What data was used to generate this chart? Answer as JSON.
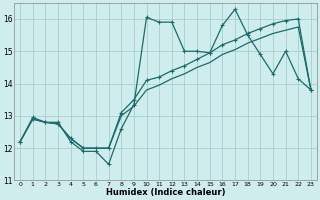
{
  "x": [
    0,
    1,
    2,
    3,
    4,
    5,
    6,
    7,
    8,
    9,
    10,
    11,
    12,
    13,
    14,
    15,
    16,
    17,
    18,
    19,
    20,
    21,
    22,
    23
  ],
  "line_jagged": [
    12.2,
    12.9,
    12.8,
    12.8,
    12.2,
    11.9,
    11.9,
    11.5,
    12.6,
    13.35,
    16.05,
    15.9,
    15.9,
    15.0,
    15.0,
    14.95,
    15.8,
    16.3,
    15.5,
    14.9,
    14.3,
    15.0,
    14.15,
    13.8
  ],
  "line_upper": [
    12.2,
    12.95,
    12.8,
    12.75,
    12.3,
    12.0,
    12.0,
    12.0,
    13.1,
    13.5,
    14.1,
    14.2,
    14.4,
    14.55,
    14.75,
    14.95,
    15.2,
    15.35,
    15.55,
    15.7,
    15.85,
    15.95,
    16.0,
    13.8
  ],
  "line_lower": [
    12.2,
    12.9,
    12.8,
    12.75,
    12.3,
    12.0,
    12.0,
    12.0,
    13.0,
    13.3,
    13.8,
    13.95,
    14.15,
    14.3,
    14.5,
    14.65,
    14.9,
    15.05,
    15.25,
    15.4,
    15.55,
    15.65,
    15.75,
    13.8
  ],
  "color": "#1a6b6b",
  "bg_color": "#d0eded",
  "grid_color": "#a0c8c8",
  "xlabel": "Humidex (Indice chaleur)",
  "ylim": [
    11,
    16.5
  ],
  "xlim": [
    -0.5,
    23.5
  ],
  "yticks": [
    11,
    12,
    13,
    14,
    15,
    16
  ],
  "xticks": [
    0,
    1,
    2,
    3,
    4,
    5,
    6,
    7,
    8,
    9,
    10,
    11,
    12,
    13,
    14,
    15,
    16,
    17,
    18,
    19,
    20,
    21,
    22,
    23
  ]
}
